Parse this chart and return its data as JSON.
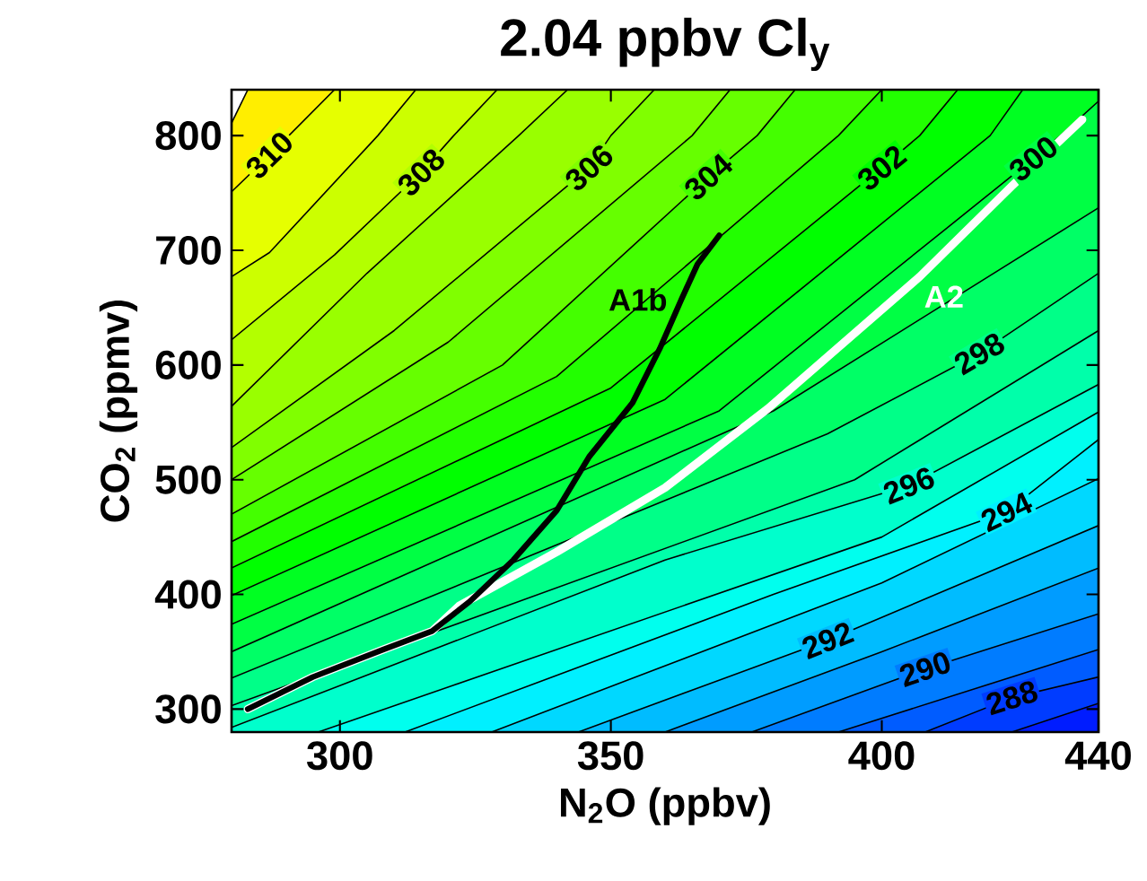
{
  "chart_data": {
    "type": "line",
    "title": "2.04 ppbv Cl$_{y}$",
    "xlabel": "N$_{2}$O (ppbv)",
    "ylabel": "CO$_{2}$ (ppmv)",
    "xlim": [
      280,
      440
    ],
    "ylim": [
      280,
      840
    ],
    "xticks": [
      300,
      350,
      400,
      440
    ],
    "yticks": [
      300,
      400,
      500,
      600,
      700,
      800
    ],
    "series": [
      {
        "color": "#000000",
        "colors": [
          "#ffee00",
          "#ffee00"
        ],
        "x": [
          280,
          283
        ],
        "values": [
          811,
          840
        ]
      },
      {
        "name": "310",
        "color": "#000000",
        "colors": [
          "#e6ff00",
          "#e6ff00",
          "#e6ff00"
        ],
        "x": [
          280,
          287,
          299
        ],
        "values": [
          751,
          783,
          840
        ]
      },
      {
        "color": "#000000",
        "colors": [
          "#ccff00",
          "#ccff00",
          "#ccff00",
          "#ccff00"
        ],
        "x": [
          280,
          287,
          307,
          314
        ],
        "values": [
          677,
          698,
          800,
          840
        ]
      },
      {
        "name": "308",
        "color": "#000000",
        "colors": [
          "#b3ff00",
          "#b3ff00",
          "#b3ff00",
          "#b3ff00",
          "#b3ff00"
        ],
        "x": [
          280,
          299,
          315,
          321,
          329
        ],
        "values": [
          622,
          696,
          768,
          800,
          840
        ]
      },
      {
        "color": "#000000",
        "colors": [
          "#99ff00",
          "#99ff00",
          "#99ff00",
          "#99ff00"
        ],
        "x": [
          280,
          305,
          333,
          342
        ],
        "values": [
          564,
          680,
          800,
          840
        ]
      },
      {
        "name": "306",
        "color": "#000000",
        "colors": [
          "#80ff00",
          "#80ff00",
          "#80ff00",
          "#80ff00",
          "#80ff00"
        ],
        "x": [
          280,
          310,
          346,
          350,
          358
        ],
        "values": [
          528,
          630,
          772,
          800,
          840
        ]
      },
      {
        "color": "#000000",
        "colors": [
          "#66ff00",
          "#66ff00",
          "#66ff00",
          "#66ff00"
        ],
        "x": [
          280,
          320,
          365,
          372
        ],
        "values": [
          500,
          620,
          800,
          840
        ]
      },
      {
        "name": "304",
        "color": "#000000",
        "colors": [
          "#44ff00",
          "#44ff00",
          "#44ff00",
          "#44ff00",
          "#44ff00"
        ],
        "x": [
          280,
          330,
          368,
          377,
          384
        ],
        "values": [
          470,
          600,
          764,
          800,
          840
        ]
      },
      {
        "color": "#000000",
        "colors": [
          "#22ff00",
          "#22ff00",
          "#22ff00",
          "#22ff00"
        ],
        "x": [
          280,
          340,
          392,
          400
        ],
        "values": [
          446,
          590,
          800,
          840
        ]
      },
      {
        "name": "302",
        "color": "#000000",
        "colors": [
          "#00ff00",
          "#00ff00",
          "#00ff00",
          "#00ff00",
          "#00ff00"
        ],
        "x": [
          280,
          350,
          400,
          407,
          414
        ],
        "values": [
          423,
          580,
          772,
          800,
          840
        ]
      },
      {
        "color": "#000000",
        "colors": [
          "#00ff22",
          "#00ff22",
          "#00ff22",
          "#00ff22"
        ],
        "x": [
          280,
          360,
          420,
          426
        ],
        "values": [
          399,
          570,
          800,
          840
        ]
      },
      {
        "name": "300",
        "color": "#000000",
        "colors": [
          "#00ff44",
          "#00ff44",
          "#00ff44",
          "#00ff44",
          "#00ff44"
        ],
        "x": [
          280,
          370,
          428,
          433,
          440
        ],
        "values": [
          374,
          560,
          780,
          800,
          830
        ]
      },
      {
        "color": "#000000",
        "colors": [
          "#00ff66",
          "#00ff66",
          "#00ff66"
        ],
        "x": [
          280,
          380,
          440
        ],
        "values": [
          350,
          560,
          737
        ]
      },
      {
        "name": "298",
        "color": "#000000",
        "colors": [
          "#00ff88",
          "#00ff88",
          "#00ff88",
          "#00ff88"
        ],
        "x": [
          280,
          390,
          418,
          440
        ],
        "values": [
          327,
          540,
          610,
          680
        ]
      },
      {
        "color": "#000000",
        "colors": [
          "#00ffaa",
          "#00ffaa",
          "#00ffaa"
        ],
        "x": [
          280,
          395,
          440
        ],
        "values": [
          303,
          500,
          630
        ]
      },
      {
        "name": "296",
        "color": "#000000",
        "colors": [
          "#00ffcc",
          "#00ffcc",
          "#00ffcc",
          "#00ffcc"
        ],
        "x": [
          280,
          360,
          405,
          440
        ],
        "values": [
          284,
          430,
          495,
          583
        ]
      },
      {
        "color": "#000000",
        "colors": [
          "#00ffee",
          "#00ffee",
          "#00ffee"
        ],
        "x": [
          296,
          400,
          440
        ],
        "values": [
          280,
          450,
          559
        ]
      },
      {
        "name": "294",
        "color": "#000000",
        "colors": [
          "#00f0ff",
          "#00f0ff",
          "#00f0ff",
          "#00f0ff"
        ],
        "x": [
          312,
          380,
          423,
          440
        ],
        "values": [
          280,
          400,
          472,
          535
        ]
      },
      {
        "color": "#000000",
        "colors": [
          "#00d8ff",
          "#00d8ff",
          "#00d8ff"
        ],
        "x": [
          328,
          400,
          440
        ],
        "values": [
          280,
          410,
          501
        ]
      },
      {
        "name": "292",
        "color": "#000000",
        "colors": [
          "#00bcff",
          "#00bcff",
          "#00bcff"
        ],
        "x": [
          344,
          390,
          440
        ],
        "values": [
          280,
          360,
          460
        ]
      },
      {
        "color": "#000000",
        "colors": [
          "#009cff",
          "#009cff",
          "#009cff"
        ],
        "x": [
          360,
          400,
          440
        ],
        "values": [
          280,
          350,
          423
        ]
      },
      {
        "name": "290",
        "color": "#000000",
        "colors": [
          "#007cff",
          "#007cff",
          "#007cff"
        ],
        "x": [
          376,
          408,
          440
        ],
        "values": [
          280,
          335,
          383
        ]
      },
      {
        "color": "#000000",
        "colors": [
          "#005cff",
          "#005cff"
        ],
        "x": [
          392,
          440
        ],
        "values": [
          280,
          352
        ]
      },
      {
        "name": "288",
        "color": "#000000",
        "colors": [
          "#003cff",
          "#003cff",
          "#003cff"
        ],
        "x": [
          408,
          424,
          440
        ],
        "values": [
          280,
          310,
          328
        ]
      },
      {
        "color": "#000000",
        "colors": [
          "#001cff",
          "#001cff"
        ],
        "x": [
          424,
          440
        ],
        "values": [
          280,
          305
        ]
      },
      {
        "name": "A1b",
        "type": "line",
        "color": "#000000",
        "x": [
          283,
          295,
          308,
          317,
          324,
          332,
          340,
          346,
          354,
          359,
          363,
          366,
          370
        ],
        "values": [
          300,
          328,
          352,
          368,
          394,
          430,
          473,
          520,
          567,
          614,
          657,
          688,
          713
        ]
      },
      {
        "name": "A2",
        "type": "line",
        "color": "#ffffff",
        "x": [
          283,
          295,
          308,
          317,
          322,
          340,
          360,
          379,
          407,
          424,
          437
        ],
        "values": [
          300,
          328,
          352,
          368,
          390,
          437,
          493,
          562,
          677,
          756,
          814
        ]
      }
    ]
  }
}
